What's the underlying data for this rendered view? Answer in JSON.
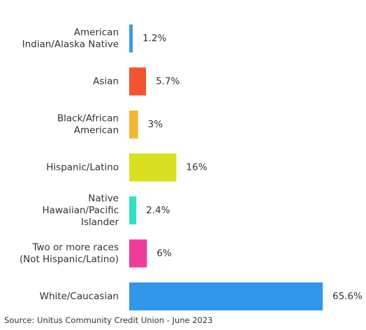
{
  "chart_data": {
    "type": "bar",
    "orientation": "horizontal",
    "categories": [
      [
        "American",
        "Indian/Alaska Native"
      ],
      [
        "Asian"
      ],
      [
        "Black/African",
        "American"
      ],
      [
        "Hispanic/Latino"
      ],
      [
        "Native",
        "Hawaiian/Pacific",
        "Islander"
      ],
      [
        "Two or more races",
        "(Not Hispanic/Latino)"
      ],
      [
        "White/Caucasian"
      ]
    ],
    "values": [
      1.2,
      5.7,
      3,
      16,
      2.4,
      6,
      65.6
    ],
    "value_labels": [
      "1.2%",
      "5.7%",
      "3%",
      "16%",
      "2.4%",
      "6%",
      "65.6%"
    ],
    "colors": [
      "#3d9be3",
      "#f35330",
      "#f3b735",
      "#d8e021",
      "#33dfc2",
      "#ed3c9b",
      "#3297ea"
    ],
    "xlim": [
      0,
      65.6
    ],
    "grid": false,
    "legend": "none"
  },
  "source": "Source: Unitus Community Credit Union - June 2023"
}
